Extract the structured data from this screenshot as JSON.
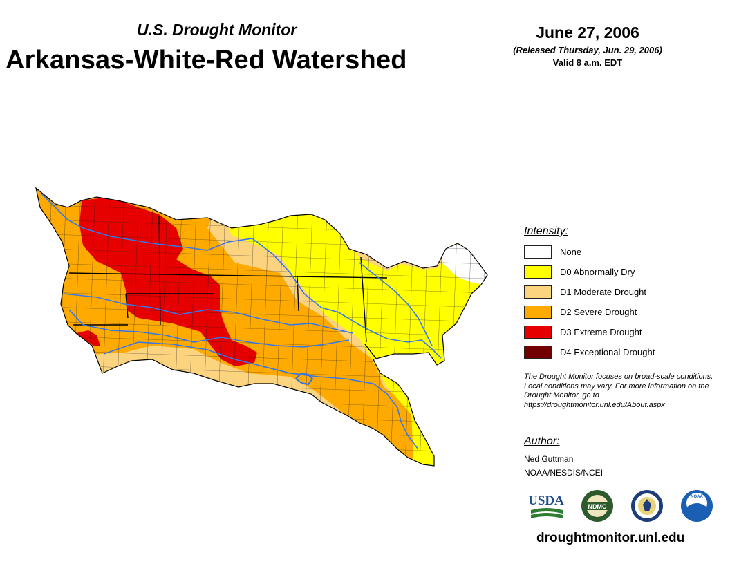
{
  "header": {
    "subtitle": "U.S. Drought Monitor",
    "title": "Arkansas-White-Red Watershed",
    "date": "June 27, 2006",
    "released": "(Released Thursday, Jun. 29, 2006)",
    "valid": "Valid 8 a.m. EDT"
  },
  "legend": {
    "title": "Intensity:",
    "items": [
      {
        "label": "None",
        "color": "#ffffff"
      },
      {
        "label": "D0 Abnormally Dry",
        "color": "#ffff00"
      },
      {
        "label": "D1 Moderate Drought",
        "color": "#fcd37f"
      },
      {
        "label": "D2 Severe Drought",
        "color": "#ffaa00"
      },
      {
        "label": "D3 Extreme Drought",
        "color": "#e60000"
      },
      {
        "label": "D4 Exceptional Drought",
        "color": "#730000"
      }
    ]
  },
  "note": "The Drought Monitor focuses on broad-scale conditions. Local conditions may vary. For more information on the Drought Monitor, go to https://droughtmonitor.unl.edu/About.aspx",
  "author": {
    "title": "Author:",
    "name": "Ned Guttman",
    "org": "NOAA/NESDIS/NCEI"
  },
  "logos": {
    "usda": "USDA",
    "ndmc": "NDMC",
    "noaa": "NOAA"
  },
  "footer": {
    "url": "droughtmonitor.unl.edu"
  },
  "colors": {
    "river": "#3377ee",
    "county_line": "#222222",
    "state_line": "#000000"
  }
}
